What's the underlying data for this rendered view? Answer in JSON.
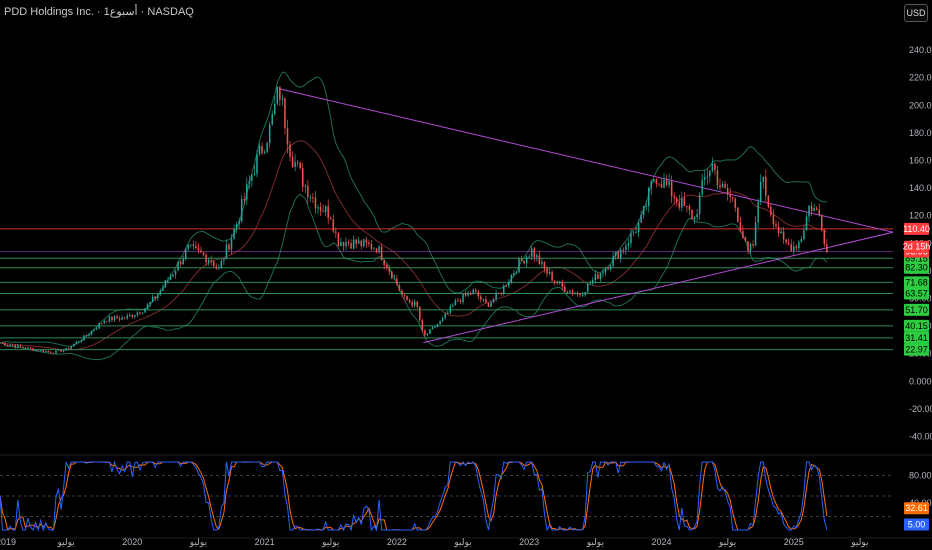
{
  "header": {
    "symbol_title": "PDD Holdings Inc. · 1أسبوع · NASDAQ",
    "currency_button": "USD"
  },
  "colors": {
    "background": "#000000",
    "up_candle": "#26a69a",
    "down_candle": "#ef5350",
    "bollinger_band": "#1f6b52",
    "bollinger_basis": "#7a2a2a",
    "trendline": "#b34bd6",
    "level_line": "#2e8b57",
    "resistance_line": "#d32f2f",
    "stoch_k": "#2962ff",
    "stoch_d": "#ff6d00",
    "price_tag": "#ff3b3b",
    "level_tag": "#2ecc40"
  },
  "chart_data": [
    {
      "type": "candlestick",
      "title": "PDD Holdings Inc. · 1أسبوع · NASDAQ",
      "currency": "USD",
      "x_tick_labels": [
        "2019",
        "يوليو",
        "2020",
        "يوليو",
        "2021",
        "يوليو",
        "2022",
        "يوليو",
        "2023",
        "يوليو",
        "2024",
        "يوليو",
        "2025",
        "يوليو"
      ],
      "y_ticks": [
        240,
        220,
        200,
        180,
        160,
        140,
        120,
        100,
        80,
        60,
        40,
        20,
        0,
        -20,
        -40
      ],
      "y_tick_labels": [
        "240.00",
        "220.00",
        "200.00",
        "180.00",
        "160.00",
        "140.00",
        "120.00",
        "100.00",
        "80.00",
        "60.00",
        "40.00",
        "20.00",
        "0.0000",
        "-20.00",
        "-40.00"
      ],
      "ylim": [
        -44,
        256
      ],
      "xlim": [
        2019.0,
        2025.75
      ],
      "price_anchors": [
        [
          2019.0,
          28
        ],
        [
          2019.2,
          24
        ],
        [
          2019.4,
          21
        ],
        [
          2019.5,
          23
        ],
        [
          2019.65,
          33
        ],
        [
          2019.8,
          45
        ],
        [
          2019.95,
          46
        ],
        [
          2020.1,
          53
        ],
        [
          2020.2,
          64
        ],
        [
          2020.3,
          78
        ],
        [
          2020.42,
          96
        ],
        [
          2020.52,
          92
        ],
        [
          2020.6,
          88
        ],
        [
          2020.65,
          80
        ],
        [
          2020.78,
          112
        ],
        [
          2020.92,
          155
        ],
        [
          2021.04,
          183
        ],
        [
          2021.11,
          212
        ],
        [
          2021.2,
          165
        ],
        [
          2021.3,
          143
        ],
        [
          2021.4,
          128
        ],
        [
          2021.5,
          121
        ],
        [
          2021.55,
          102
        ],
        [
          2021.7,
          100
        ],
        [
          2021.85,
          97
        ],
        [
          2021.96,
          78
        ],
        [
          2022.05,
          60
        ],
        [
          2022.15,
          55
        ],
        [
          2022.2,
          32
        ],
        [
          2022.35,
          45
        ],
        [
          2022.45,
          58
        ],
        [
          2022.58,
          65
        ],
        [
          2022.68,
          55
        ],
        [
          2022.78,
          64
        ],
        [
          2022.92,
          85
        ],
        [
          2023.02,
          95
        ],
        [
          2023.12,
          80
        ],
        [
          2023.25,
          68
        ],
        [
          2023.38,
          63
        ],
        [
          2023.5,
          75
        ],
        [
          2023.6,
          85
        ],
        [
          2023.72,
          98
        ],
        [
          2023.85,
          117
        ],
        [
          2023.95,
          150
        ],
        [
          2024.05,
          140
        ],
        [
          2024.15,
          128
        ],
        [
          2024.25,
          118
        ],
        [
          2024.32,
          145
        ],
        [
          2024.38,
          158
        ],
        [
          2024.45,
          140
        ],
        [
          2024.55,
          130
        ],
        [
          2024.65,
          92
        ],
        [
          2024.7,
          100
        ],
        [
          2024.75,
          150
        ],
        [
          2024.82,
          125
        ],
        [
          2024.92,
          100
        ],
        [
          2025.0,
          98
        ],
        [
          2025.05,
          102
        ],
        [
          2025.12,
          128
        ],
        [
          2025.2,
          120
        ],
        [
          2025.25,
          94
        ]
      ],
      "indicators": {
        "bollinger_bands": "period 20",
        "basis_line": "20-period moving average"
      },
      "trendlines": [
        {
          "name": "descending",
          "from": [
            2021.11,
            212
          ],
          "to": [
            2025.75,
            108
          ]
        },
        {
          "name": "ascending",
          "from": [
            2022.2,
            28
          ],
          "to": [
            2025.75,
            108
          ]
        }
      ],
      "horizontal_levels": [
        {
          "price": 110.4,
          "label": "110.40",
          "color_key": "resistance_line"
        },
        {
          "price": 89.15,
          "label": "89.15"
        },
        {
          "price": 82.3,
          "label": "82.30"
        },
        {
          "price": 71.68,
          "label": "71.68"
        },
        {
          "price": 63.57,
          "label": "63.57"
        },
        {
          "price": 51.7,
          "label": "51.70"
        },
        {
          "price": 40.15,
          "label": "40.15"
        },
        {
          "price": 31.41,
          "label": "31.41"
        },
        {
          "price": 22.97,
          "label": "22.97"
        }
      ],
      "price_tags": [
        {
          "price": 93.98,
          "label": "93.98"
        },
        {
          "price": 97.5,
          "label": "2d 15h"
        }
      ]
    },
    {
      "type": "line",
      "title": "",
      "indicator": "Stochastic",
      "y_tick_labels": [
        "80.00",
        "40.00"
      ],
      "y_ticks": [
        80,
        40
      ],
      "levels": [
        80,
        50,
        20
      ],
      "ylim": [
        0,
        100
      ],
      "series": [
        {
          "color_key": "stoch_k",
          "last_value_label": "5.00"
        },
        {
          "color_key": "stoch_d",
          "last_value_label": "32.61"
        }
      ]
    }
  ]
}
